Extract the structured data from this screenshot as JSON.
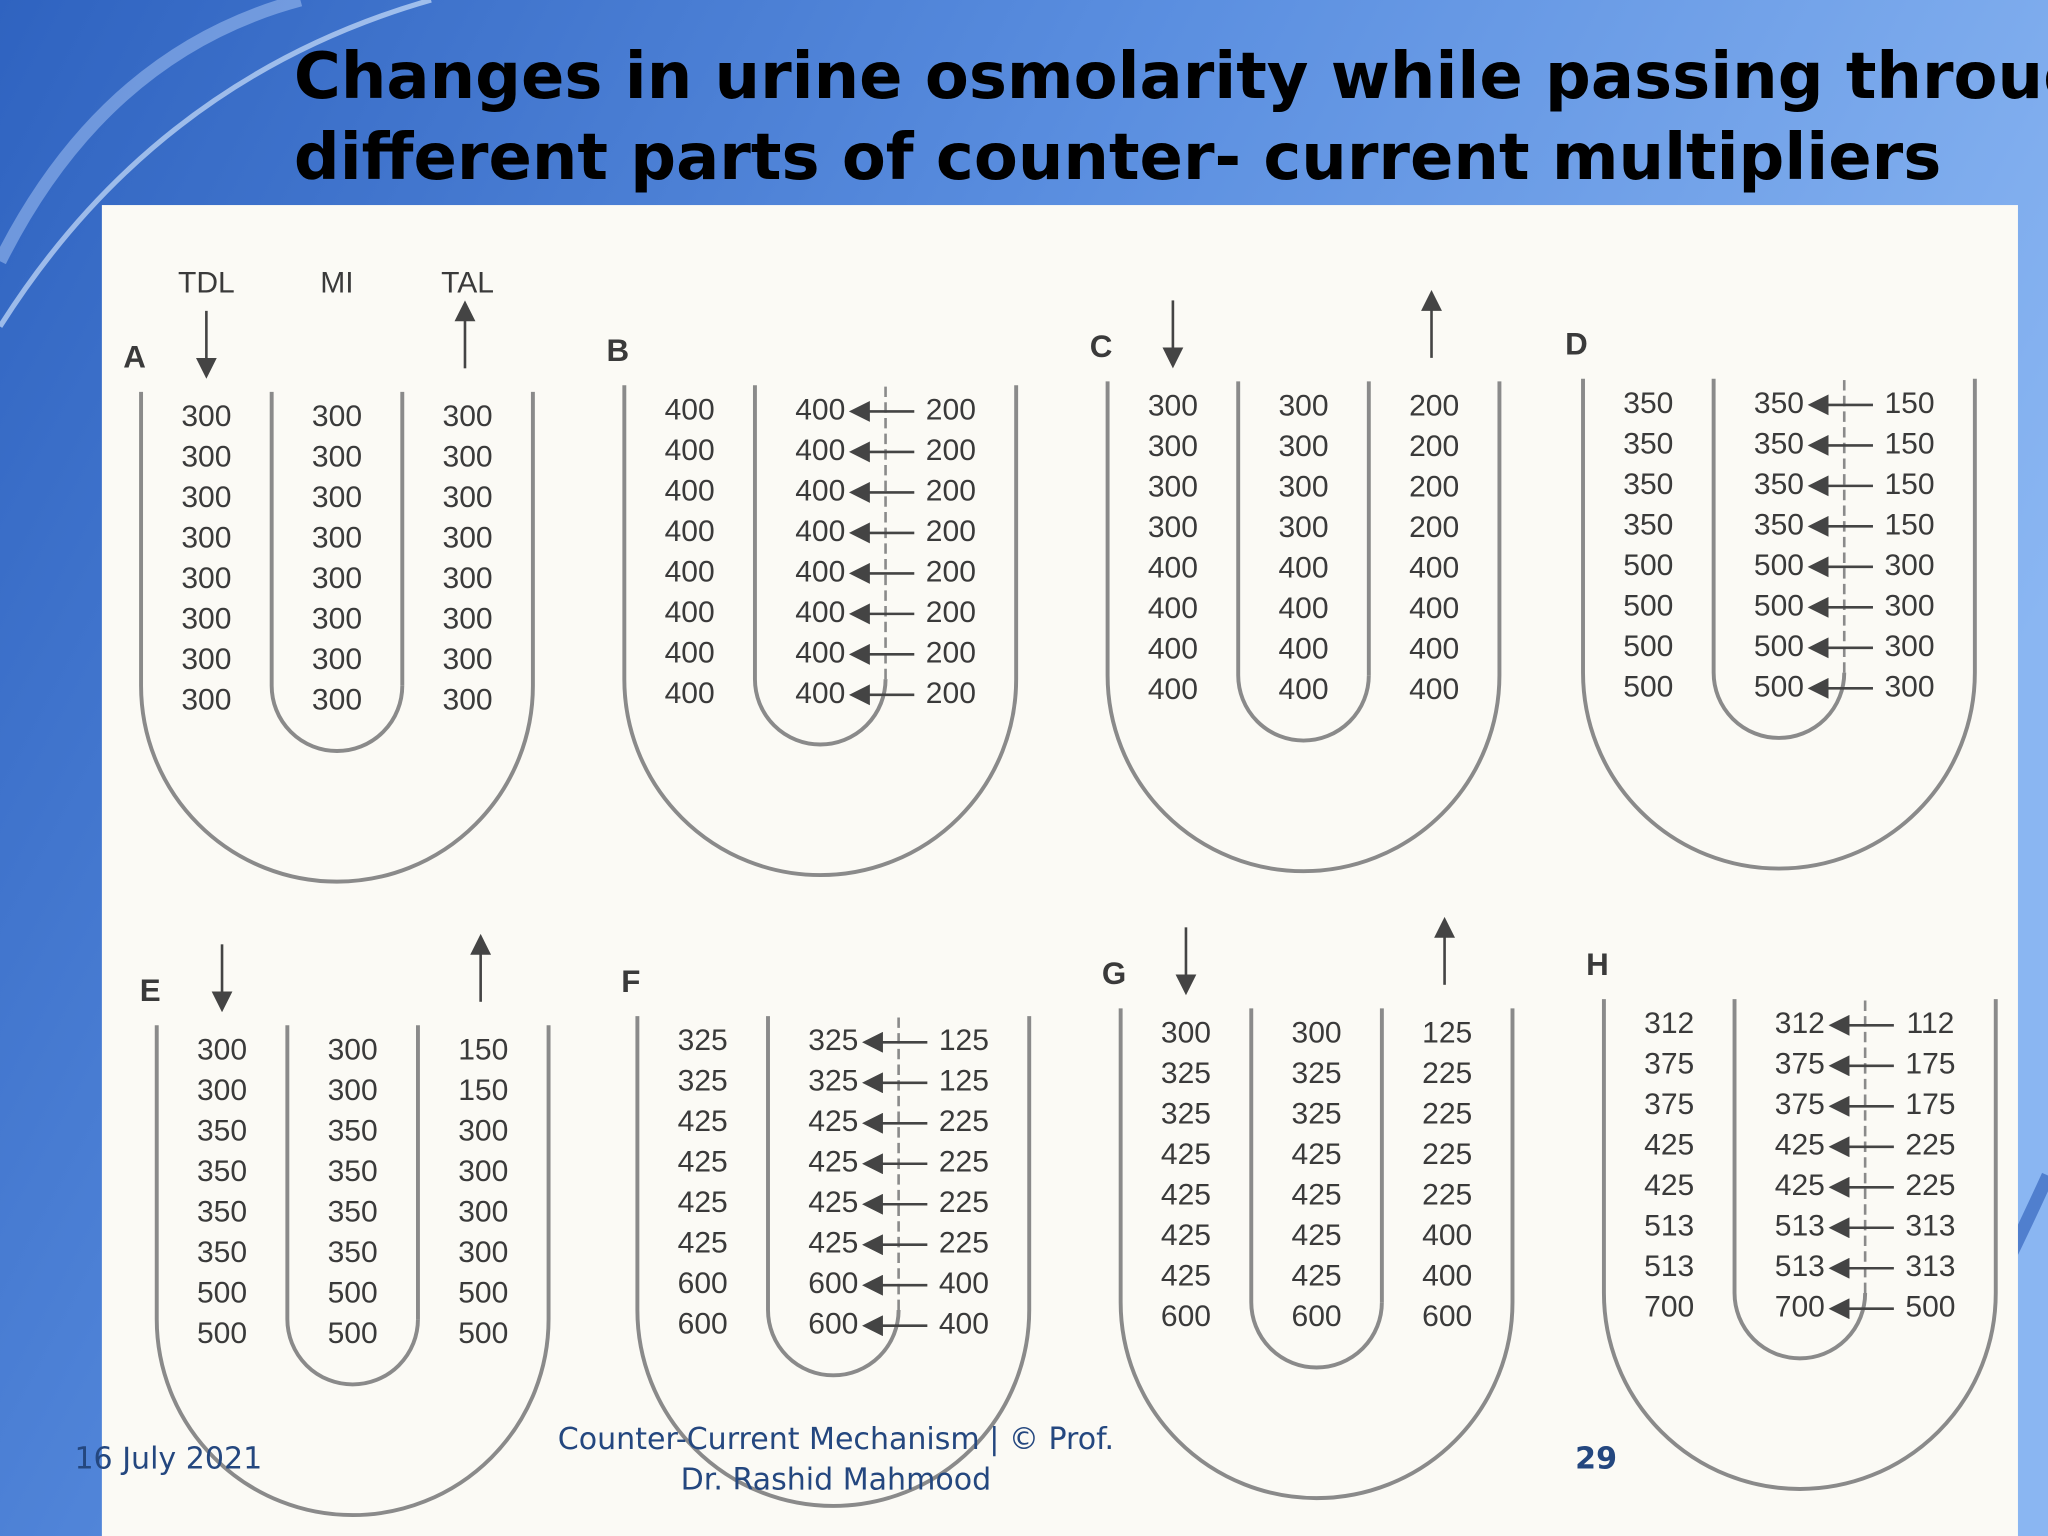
{
  "title": [
    "Changes in urine osmolarity while passing through",
    "different parts of counter- current multipliers"
  ],
  "column_labels": [
    "TDL",
    "MI",
    "TAL"
  ],
  "panels": [
    {
      "label": "A",
      "tdl": [
        300,
        300,
        300,
        300,
        300,
        300,
        300,
        300
      ],
      "mi": [
        300,
        300,
        300,
        300,
        300,
        300,
        300,
        300
      ],
      "tal": [
        300,
        300,
        300,
        300,
        300,
        300,
        300,
        300
      ]
    },
    {
      "label": "B",
      "tdl": [
        400,
        400,
        400,
        400,
        400,
        400,
        400,
        400
      ],
      "mi": [
        400,
        400,
        400,
        400,
        400,
        400,
        400,
        400
      ],
      "tal": [
        200,
        200,
        200,
        200,
        200,
        200,
        200,
        200
      ]
    },
    {
      "label": "C",
      "tdl": [
        300,
        300,
        300,
        300,
        400,
        400,
        400,
        400
      ],
      "mi": [
        300,
        300,
        300,
        300,
        400,
        400,
        400,
        400
      ],
      "tal": [
        200,
        200,
        200,
        200,
        400,
        400,
        400,
        400
      ]
    },
    {
      "label": "D",
      "tdl": [
        350,
        350,
        350,
        350,
        500,
        500,
        500,
        500
      ],
      "mi": [
        350,
        350,
        350,
        350,
        500,
        500,
        500,
        500
      ],
      "tal": [
        150,
        150,
        150,
        150,
        300,
        300,
        300,
        300
      ]
    },
    {
      "label": "E",
      "tdl": [
        300,
        300,
        350,
        350,
        350,
        350,
        500,
        500
      ],
      "mi": [
        300,
        300,
        350,
        350,
        350,
        350,
        500,
        500
      ],
      "tal": [
        150,
        150,
        300,
        300,
        300,
        300,
        500,
        500
      ]
    },
    {
      "label": "F",
      "tdl": [
        325,
        325,
        425,
        425,
        425,
        425,
        600,
        600
      ],
      "mi": [
        325,
        325,
        425,
        425,
        425,
        425,
        600,
        600
      ],
      "tal": [
        125,
        125,
        225,
        225,
        225,
        225,
        400,
        400
      ]
    },
    {
      "label": "G",
      "tdl": [
        300,
        325,
        325,
        425,
        425,
        425,
        425,
        600
      ],
      "mi": [
        300,
        325,
        325,
        425,
        425,
        425,
        425,
        600
      ],
      "tal": [
        125,
        225,
        225,
        225,
        225,
        400,
        400,
        600
      ]
    },
    {
      "label": "H",
      "tdl": [
        312,
        375,
        375,
        425,
        425,
        513,
        513,
        700
      ],
      "mi": [
        312,
        375,
        375,
        425,
        425,
        513,
        513,
        700
      ],
      "tal": [
        112,
        175,
        175,
        225,
        225,
        313,
        313,
        500
      ]
    }
  ],
  "footer": {
    "date": "16 July 2021",
    "text": [
      "Counter-Current Mechanism  |  © Prof.",
      "Dr. Rashid Mahmood"
    ],
    "page": "29"
  }
}
